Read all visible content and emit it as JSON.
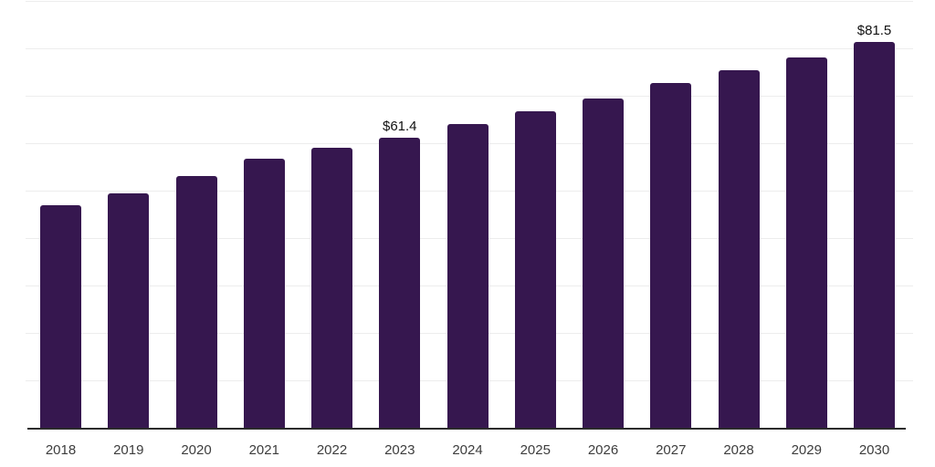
{
  "chart_data": {
    "type": "bar",
    "title": "",
    "xlabel": "",
    "ylabel": "",
    "categories": [
      "2018",
      "2019",
      "2020",
      "2021",
      "2022",
      "2023",
      "2024",
      "2025",
      "2026",
      "2027",
      "2028",
      "2029",
      "2030"
    ],
    "values": [
      47.1,
      49.7,
      53.3,
      56.9,
      59.2,
      61.4,
      64.2,
      66.9,
      69.6,
      72.9,
      75.6,
      78.3,
      81.5
    ],
    "data_labels": {
      "2023": "$61.4",
      "2030": "$81.5"
    },
    "ylim": [
      0,
      90
    ],
    "gridline_step": 10,
    "grid": "horizontal-only",
    "legend": "none",
    "y_axis_tick_labels": "none",
    "colors": {
      "bar": "#36174F",
      "gridline": "#ededed",
      "axis_line": "#2b2b2b",
      "tick_label": "#3d3d3d",
      "data_label": "#111111"
    }
  }
}
